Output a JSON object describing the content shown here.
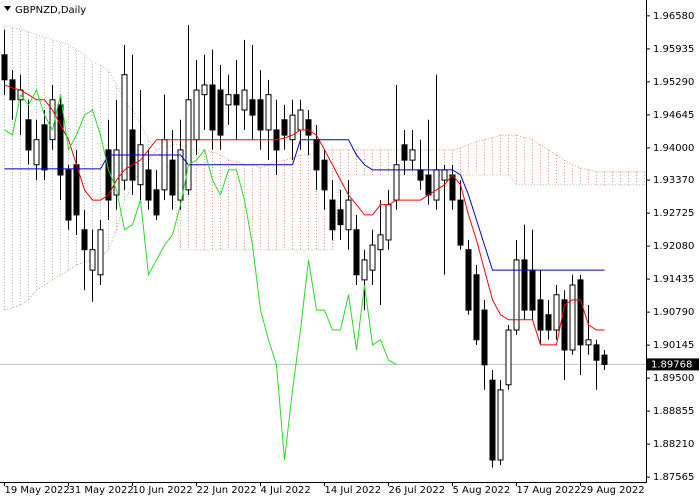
{
  "chart_data": {
    "type": "candlestick",
    "title": "GBPNZD,Daily",
    "categories": [
      "19 May 2022",
      null,
      null,
      null,
      null,
      null,
      null,
      null,
      "31 May 2022",
      null,
      null,
      null,
      null,
      null,
      null,
      null,
      "10 Jun 2022",
      null,
      null,
      null,
      null,
      null,
      null,
      null,
      "22 Jun 2022",
      null,
      null,
      null,
      null,
      null,
      null,
      null,
      "4 Jul 2022",
      null,
      null,
      null,
      null,
      null,
      null,
      null,
      "14 Jul 2022",
      null,
      null,
      null,
      null,
      null,
      null,
      null,
      "26 Jul 2022",
      null,
      null,
      null,
      null,
      null,
      null,
      null,
      "5 Aug 2022",
      null,
      null,
      null,
      null,
      null,
      null,
      null,
      "17 Aug 2022",
      null,
      null,
      null,
      null,
      null,
      null,
      null,
      "29 Aug 2022",
      null,
      null,
      null,
      null,
      null,
      null,
      null,
      null
    ],
    "open": [
      1.9582,
      1.9533,
      1.9494,
      1.9455,
      1.9367,
      1.9445,
      1.9416,
      1.9484,
      1.9357,
      1.9367,
      1.924,
      1.9161,
      1.9152,
      1.9396,
      1.9308,
      1.9337,
      1.9435,
      1.9328,
      1.9357,
      1.9318,
      1.9318,
      1.9376,
      1.9298,
      1.9318,
      1.9416,
      1.9504,
      1.9523,
      1.9513,
      1.9484,
      1.9504,
      1.9474,
      1.9494,
      1.9494,
      1.9435,
      1.9435,
      1.9455,
      1.9416,
      1.9435,
      1.9455,
      1.9416,
      1.9376,
      1.9298,
      1.9279,
      1.924,
      1.924,
      1.9142,
      1.9161,
      1.9201,
      1.922,
      1.9298,
      1.9406,
      1.9376,
      1.9357,
      1.9347,
      1.9298,
      1.9337,
      1.9347,
      1.9298,
      1.9201,
      1.9152,
      1.9083,
      1.8946,
      1.879,
      1.8937,
      1.9044,
      1.9181,
      1.9161,
      1.9103,
      1.9074,
      1.9044,
      1.9103,
      1.9005,
      1.9142,
      1.9015,
      1.9015,
      1.8995,
      null,
      null,
      null,
      null,
      null
    ],
    "high": [
      1.9631,
      1.9552,
      1.9543,
      1.9494,
      1.9455,
      1.9474,
      1.9523,
      1.9504,
      1.9367,
      1.9396,
      1.9279,
      1.924,
      1.9259,
      1.9455,
      1.9494,
      1.9601,
      1.9582,
      1.9513,
      1.9396,
      1.9357,
      1.9504,
      1.9435,
      1.9455,
      1.964,
      1.9572,
      1.9582,
      1.9592,
      1.9562,
      1.9543,
      1.9572,
      1.9611,
      1.9601,
      1.9552,
      1.9533,
      1.9494,
      1.9484,
      1.9494,
      1.9494,
      1.9474,
      1.9445,
      1.9396,
      1.9337,
      1.9318,
      1.9337,
      1.9269,
      1.9201,
      1.924,
      1.9298,
      1.9318,
      1.9523,
      1.9435,
      1.9435,
      1.9416,
      1.9455,
      1.9543,
      1.9367,
      1.9367,
      1.9337,
      1.922,
      1.9171,
      1.9103,
      1.8966,
      1.8946,
      1.9054,
      1.922,
      1.925,
      1.924,
      1.9161,
      1.9103,
      1.9132,
      1.9122,
      1.9152,
      1.9152,
      1.9093,
      1.9025,
      1.9005,
      null,
      null,
      null,
      null,
      null
    ],
    "low": [
      1.9503,
      1.9455,
      1.9425,
      1.9367,
      1.9337,
      1.9337,
      1.9396,
      1.9298,
      1.924,
      1.923,
      1.9122,
      1.9099,
      1.9132,
      1.9259,
      1.9279,
      1.9318,
      1.9308,
      1.9298,
      1.9279,
      1.9259,
      1.9298,
      1.9279,
      1.9279,
      1.9308,
      1.9386,
      1.9435,
      1.9396,
      1.9396,
      1.9445,
      1.9416,
      1.9435,
      1.9416,
      1.9396,
      1.9376,
      1.9347,
      1.9396,
      1.9376,
      1.9396,
      1.9386,
      1.9318,
      1.9279,
      1.922,
      1.922,
      1.9201,
      1.9132,
      1.9083,
      1.9132,
      1.9093,
      1.9201,
      1.9279,
      1.9347,
      1.9357,
      1.9318,
      1.9289,
      1.9279,
      1.9152,
      1.9279,
      1.9201,
      1.9074,
      1.9015,
      1.8927,
      1.8775,
      1.878,
      1.8927,
      1.9035,
      1.9064,
      1.9064,
      1.9015,
      1.9025,
      1.9025,
      1.8946,
      1.8996,
      1.8956,
      1.8996,
      1.8927,
      1.8966,
      null,
      null,
      null,
      null,
      null
    ],
    "close": [
      1.9533,
      1.9494,
      1.9513,
      1.9396,
      1.9416,
      1.9357,
      1.9494,
      1.9347,
      1.9259,
      1.9269,
      1.9201,
      1.9201,
      1.924,
      1.9298,
      1.9396,
      1.9543,
      1.9337,
      1.9406,
      1.9298,
      1.9269,
      1.9416,
      1.9308,
      1.9396,
      1.9494,
      1.9513,
      1.9523,
      1.9435,
      1.9425,
      1.9504,
      1.9484,
      1.9513,
      1.9464,
      1.9435,
      1.9504,
      1.9396,
      1.9425,
      1.9464,
      1.9474,
      1.9425,
      1.9357,
      1.9318,
      1.924,
      1.925,
      1.9298,
      1.9152,
      1.9181,
      1.921,
      1.923,
      1.9289,
      1.9367,
      1.9376,
      1.9396,
      1.9337,
      1.9308,
      1.9357,
      1.9357,
      1.9298,
      1.921,
      1.9083,
      1.9025,
      1.8976,
      1.879,
      1.8927,
      1.9044,
      1.9181,
      1.9083,
      1.9083,
      1.9044,
      1.9044,
      1.9113,
      1.9005,
      1.9132,
      1.9015,
      1.9025,
      1.8985,
      1.89768,
      null,
      null,
      null,
      null,
      null
    ],
    "series": [
      {
        "color": "#ff0000",
        "values": [
          1.9523,
          1.9517,
          1.9513,
          1.9504,
          1.9494,
          1.9494,
          1.9474,
          1.9445,
          1.9416,
          1.9367,
          1.9318,
          1.9298,
          1.9298,
          1.9308,
          1.9337,
          1.9357,
          1.9367,
          1.9376,
          1.9396,
          1.9416,
          1.9416,
          1.9416,
          1.9416,
          1.9416,
          1.9416,
          1.9416,
          1.9416,
          1.9416,
          1.9416,
          1.9416,
          1.9416,
          1.9416,
          1.9416,
          1.9416,
          1.9416,
          1.9419,
          1.9425,
          1.9435,
          1.9435,
          1.9425,
          1.9396,
          1.9367,
          1.9337,
          1.9308,
          1.9289,
          1.9269,
          1.9269,
          1.9289,
          1.9289,
          1.9298,
          1.9298,
          1.9298,
          1.9298,
          1.9308,
          1.9318,
          1.9328,
          1.9347,
          1.9328,
          1.9269,
          1.922,
          1.9161,
          1.9103,
          1.9074,
          1.9064,
          1.9064,
          1.9064,
          1.9064,
          1.9015,
          1.9015,
          1.9015,
          1.9093,
          1.9103,
          1.9103,
          1.9054,
          1.9044,
          1.9044,
          null,
          null,
          null,
          null,
          null
        ]
      },
      {
        "color": "#0000cc",
        "values": [
          1.9359,
          1.9359,
          1.9359,
          1.9359,
          1.9359,
          1.9359,
          1.9359,
          1.9359,
          1.9359,
          1.9359,
          1.9359,
          1.9359,
          1.9359,
          1.9386,
          1.9386,
          1.9386,
          1.9386,
          1.9386,
          1.9386,
          1.9386,
          1.9386,
          1.9386,
          1.9386,
          1.9367,
          1.9367,
          1.9367,
          1.9367,
          1.9367,
          1.9367,
          1.9367,
          1.9367,
          1.9367,
          1.9367,
          1.9367,
          1.9367,
          1.9367,
          1.9367,
          1.9416,
          1.9416,
          1.9416,
          1.9416,
          1.9416,
          1.9416,
          1.9416,
          1.9386,
          1.9367,
          1.9357,
          1.9357,
          1.9357,
          1.9357,
          1.9357,
          1.9357,
          1.9357,
          1.9357,
          1.9357,
          1.9357,
          1.9357,
          1.9347,
          1.9308,
          1.9259,
          1.921,
          1.9161,
          1.9161,
          1.9161,
          1.9161,
          1.9161,
          1.9161,
          1.9161,
          1.9161,
          1.9161,
          1.9161,
          1.9161,
          1.9161,
          1.9161,
          1.9161,
          1.9161,
          null,
          null,
          null,
          null,
          null
        ]
      },
      {
        "color": "#22dd22",
        "values": [
          1.9435,
          1.9425,
          1.9504,
          1.9484,
          1.9513,
          1.9464,
          1.9435,
          1.9504,
          1.9396,
          1.9425,
          1.9464,
          1.9474,
          1.9425,
          1.9357,
          1.9318,
          1.924,
          1.925,
          1.9298,
          1.9152,
          1.9181,
          1.921,
          1.923,
          1.9289,
          1.9367,
          1.9376,
          1.9396,
          1.9337,
          1.9308,
          1.9357,
          1.9357,
          1.9298,
          1.921,
          1.9083,
          1.9025,
          1.8976,
          1.879,
          1.8927,
          1.9044,
          1.9181,
          1.9083,
          1.9083,
          1.9044,
          1.9044,
          1.9113,
          1.9005,
          1.9132,
          1.9015,
          1.9025,
          1.8985,
          1.89768,
          null,
          null,
          null,
          null,
          null,
          null,
          null,
          null,
          null,
          null,
          null,
          null,
          null,
          null,
          null,
          null,
          null,
          null,
          null,
          null,
          null,
          null,
          null,
          null,
          null,
          null,
          null,
          null,
          null,
          null,
          null
        ]
      }
    ],
    "cloud_a": {
      "color": "#e8956a",
      "values": [
        1.9083,
        1.9087,
        1.9093,
        1.9103,
        1.9122,
        1.9132,
        1.9142,
        1.9152,
        1.9161,
        1.9171,
        1.9177,
        1.9181,
        1.9185,
        1.9201,
        1.924,
        1.9298,
        1.9328,
        1.9357,
        1.9376,
        1.9396,
        1.94,
        1.9406,
        1.9406,
        1.94,
        1.9396,
        1.9396,
        1.9392,
        1.9386,
        1.9376,
        1.9373,
        1.9367,
        1.9367,
        1.9361,
        1.9367,
        1.9373,
        1.9376,
        1.938,
        1.9386,
        1.9386,
        1.9392,
        1.9396,
        1.9396,
        1.9396,
        1.9396,
        1.9396,
        1.9396,
        1.9396,
        1.9396,
        1.9396,
        1.9396,
        1.9396,
        1.9396,
        1.9396,
        1.9396,
        1.9396,
        1.9396,
        1.9396,
        1.94,
        1.9406,
        1.9412,
        1.9416,
        1.942,
        1.9425,
        1.9425,
        1.9425,
        1.942,
        1.9416,
        1.9406,
        1.9396,
        1.9386,
        1.9376,
        1.9367,
        1.9361,
        1.9357,
        1.9353,
        1.9353,
        1.9353,
        1.9353,
        1.9353,
        1.9353,
        1.9353
      ]
    },
    "cloud_b": {
      "color": "#b4b4b4",
      "values": [
        1.964,
        1.9635,
        1.9631,
        1.9627,
        1.9621,
        1.9617,
        1.9611,
        1.9607,
        1.9601,
        1.9592,
        1.9582,
        1.9568,
        1.9562,
        1.9552,
        1.9523,
        1.9494,
        1.9474,
        1.9445,
        1.9416,
        1.9396,
        1.9376,
        1.9347,
        1.9201,
        1.9201,
        1.9201,
        1.9201,
        1.9201,
        1.9201,
        1.9201,
        1.9201,
        1.9201,
        1.9201,
        1.9201,
        1.9201,
        1.9201,
        1.9201,
        1.9201,
        1.9201,
        1.9201,
        1.9201,
        1.9201,
        1.9201,
        1.9347,
        1.9347,
        1.9347,
        1.9347,
        1.9347,
        1.9347,
        1.9347,
        1.9347,
        1.9347,
        1.9347,
        1.9347,
        1.9347,
        1.9347,
        1.9347,
        1.9347,
        1.9347,
        1.9347,
        1.9347,
        1.9347,
        1.9347,
        1.9347,
        1.9347,
        1.9328,
        1.9328,
        1.9328,
        1.9328,
        1.9328,
        1.9328,
        1.9328,
        1.9328,
        1.9328,
        1.9328,
        1.9328,
        1.9328,
        1.9328,
        1.9328,
        1.9328,
        1.9328,
        1.9328
      ]
    },
    "last_price": {
      "value": 1.89768,
      "label": "1.89768"
    },
    "ylim": [
      1.8747,
      1.9689
    ],
    "yticks": [
      {
        "value": 1.9658,
        "label": "1.96580"
      },
      {
        "value": 1.95935,
        "label": "1.95935"
      },
      {
        "value": 1.9529,
        "label": "1.95290"
      },
      {
        "value": 1.94645,
        "label": "1.94645"
      },
      {
        "value": 1.94,
        "label": "1.94000"
      },
      {
        "value": 1.9337,
        "label": "1.93370"
      },
      {
        "value": 1.92725,
        "label": "1.92725"
      },
      {
        "value": 1.9208,
        "label": "1.92080"
      },
      {
        "value": 1.91435,
        "label": "1.91435"
      },
      {
        "value": 1.9079,
        "label": "1.90790"
      },
      {
        "value": 1.90145,
        "label": "1.90145"
      },
      {
        "value": 1.895,
        "label": "1.89500"
      },
      {
        "value": 1.88855,
        "label": "1.88855"
      },
      {
        "value": 1.8821,
        "label": "1.88210"
      },
      {
        "value": 1.87565,
        "label": "1.87565"
      }
    ],
    "grid": false
  }
}
